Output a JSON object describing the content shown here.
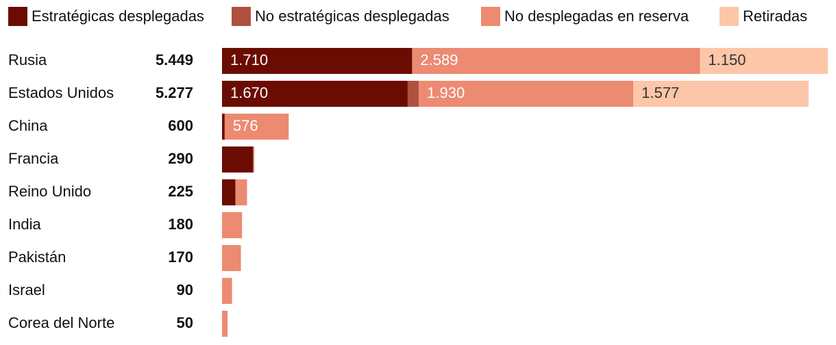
{
  "chart_data": {
    "type": "stacked-bar-horizontal",
    "categories": [
      "Rusia",
      "Estados Unidos",
      "China",
      "Francia",
      "Reino Unido",
      "India",
      "Pakistán",
      "Israel",
      "Corea del Norte"
    ],
    "totals": {
      "values": [
        5449,
        5277,
        600,
        290,
        225,
        180,
        170,
        90,
        50
      ],
      "value_labels": [
        "5.449",
        "5.277",
        "600",
        "290",
        "225",
        "180",
        "170",
        "90",
        "50"
      ]
    },
    "series": [
      {
        "name": "Estratégicas desplegadas",
        "color": "#6b0c02",
        "values": [
          1710,
          1670,
          24,
          280,
          120,
          0,
          0,
          0,
          0
        ],
        "value_labels": [
          "1.710",
          "1.670",
          null,
          null,
          null,
          null,
          null,
          null,
          null
        ]
      },
      {
        "name": "No estratégicas desplegadas",
        "color": "#b05040",
        "values": [
          0,
          100,
          0,
          0,
          0,
          0,
          0,
          0,
          0
        ],
        "value_labels": [
          null,
          null,
          null,
          null,
          null,
          null,
          null,
          null,
          null
        ]
      },
      {
        "name": "No desplegadas en reserva",
        "color": "#ec8a72",
        "values": [
          2589,
          1930,
          576,
          10,
          105,
          180,
          170,
          90,
          50
        ],
        "value_labels": [
          "2.589",
          "1.930",
          "576",
          null,
          null,
          null,
          null,
          null,
          null
        ]
      },
      {
        "name": "Retiradas",
        "color": "#fdc6a8",
        "values": [
          1150,
          1577,
          0,
          0,
          0,
          0,
          0,
          0,
          0
        ],
        "value_labels": [
          "1.150",
          "1.577",
          null,
          null,
          null,
          null,
          null,
          null,
          null
        ]
      }
    ]
  }
}
